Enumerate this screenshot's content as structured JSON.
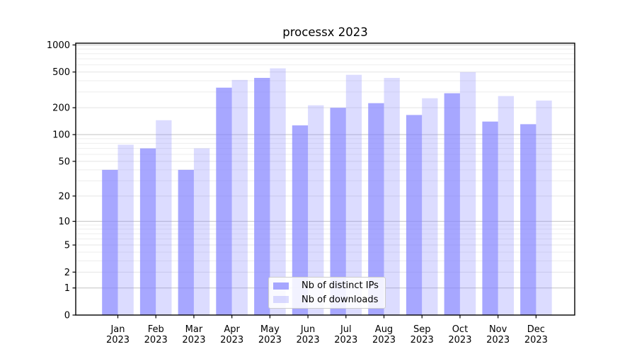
{
  "title": "processx 2023",
  "chart_data": {
    "type": "bar",
    "title": "processx 2023",
    "categories": [
      "Jan 2023",
      "Feb 2023",
      "Mar 2023",
      "Apr 2023",
      "May 2023",
      "Jun 2023",
      "Jul 2023",
      "Aug 2023",
      "Sep 2023",
      "Oct 2023",
      "Nov 2023",
      "Dec 2023"
    ],
    "months": [
      "Jan",
      "Feb",
      "Mar",
      "Apr",
      "May",
      "Jun",
      "Jul",
      "Aug",
      "Sep",
      "Oct",
      "Nov",
      "Dec"
    ],
    "year_label": "2023",
    "series": [
      {
        "name": "Nb of distinct IPs",
        "color": "rgba(130,130,255,0.70)",
        "values": [
          40,
          70,
          40,
          335,
          430,
          127,
          200,
          225,
          166,
          290,
          140,
          131
        ]
      },
      {
        "name": "Nb of downloads",
        "color": "rgba(130,130,255,0.28)",
        "values": [
          77,
          145,
          70,
          408,
          550,
          213,
          465,
          430,
          255,
          498,
          270,
          240
        ]
      }
    ],
    "yscale": "log1p",
    "ylim": [
      0,
      1000
    ],
    "y_ticks": [
      0,
      1,
      2,
      5,
      10,
      20,
      50,
      100,
      200,
      500,
      1000
    ],
    "y_minor_ticks": [
      3,
      4,
      6,
      7,
      8,
      9,
      30,
      40,
      60,
      70,
      80,
      90,
      300,
      400,
      600,
      700,
      800,
      900
    ],
    "xlabel": "",
    "ylabel": "",
    "grid": "horizontal",
    "legend_position": "lower center inside",
    "colors": {
      "bar_dark": "rgba(130,130,255,0.70)",
      "bar_light": "rgba(130,130,255,0.28)",
      "grid_decade": "#c3c3c3",
      "grid_sub": "#e4e4e4",
      "grid_minor": "#ededed",
      "axis": "#000000",
      "text": "#000000"
    }
  }
}
